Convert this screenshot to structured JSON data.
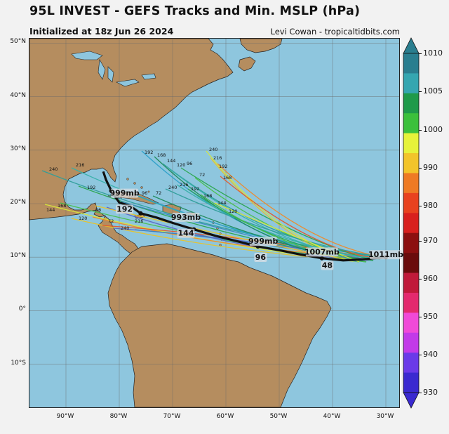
{
  "header": {
    "title": "95L INVEST - GEFS Tracks and Min. MSLP (hPa)",
    "subtitle": "Initialized at 18z Jun 26 2024",
    "credit": "Levi Cowan - tropicaltidbits.com"
  },
  "map": {
    "lat_labels": [
      "50°N",
      "40°N",
      "30°N",
      "20°N",
      "10°N",
      "0°",
      "10°S"
    ],
    "lon_labels": [
      "90°W",
      "80°W",
      "70°W",
      "60°W",
      "50°W",
      "40°W",
      "30°W"
    ],
    "ocean_color": "#8ec6de",
    "land_color": "#b58d5f",
    "mean_track_color": "#111111",
    "mean_track_labels": [
      {
        "text": "1011mb",
        "lon": -30.0,
        "lat": 10.0
      },
      {
        "text": "1007mb",
        "lon": -42.0,
        "lat": 10.5
      },
      {
        "text": "48",
        "lon": -41.0,
        "lat": 8.0
      },
      {
        "text": "999mb",
        "lon": -53.0,
        "lat": 12.5
      },
      {
        "text": "96",
        "lon": -53.5,
        "lat": 9.5
      },
      {
        "text": "993mb",
        "lon": -67.5,
        "lat": 17.0
      },
      {
        "text": "144",
        "lon": -67.5,
        "lat": 14.0
      },
      {
        "text": "999mb",
        "lon": -79.0,
        "lat": 21.5
      },
      {
        "text": "192",
        "lon": -79.0,
        "lat": 18.5
      }
    ],
    "member_hour_labels": [
      "240",
      "216",
      "192",
      "168",
      "144",
      "120",
      "96",
      "72"
    ]
  },
  "colorbar": {
    "ticks": [
      "1010",
      "1005",
      "1000",
      "990",
      "980",
      "970",
      "960",
      "950",
      "940",
      "930"
    ],
    "colors": [
      "#2a7e8f",
      "#35a6b0",
      "#1f9a4a",
      "#3cc03c",
      "#e6f23a",
      "#f2c42a",
      "#ee7a24",
      "#e8421f",
      "#d8201e",
      "#8c1010",
      "#6a0c0c",
      "#c01a3a",
      "#e32a6e",
      "#f04ad8",
      "#c23ae8",
      "#6a3ae8",
      "#3a2ad0"
    ]
  }
}
